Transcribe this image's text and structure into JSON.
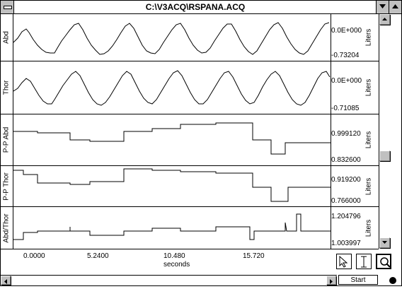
{
  "window": {
    "title": "C:\\V3ACQ\\RSPANA.ACQ"
  },
  "channels": [
    {
      "label": "Abd",
      "max": "0.0E+000",
      "min": "-0.73204",
      "unit": "Liters"
    },
    {
      "label": "Thor",
      "max": "0.0E+000",
      "min": "-0.71085",
      "unit": "Liters"
    },
    {
      "label": "P-P Abd",
      "max": "0.999120",
      "min": "0.832600",
      "unit": "Liters"
    },
    {
      "label": "P-P Thor",
      "max": "0.919200",
      "min": "0.766000",
      "unit": "Liters"
    },
    {
      "label": "Abd/Thor",
      "max": "1.204796",
      "min": "1.003997",
      "unit": "Liters"
    }
  ],
  "time_axis": {
    "ticks": [
      "0.0000",
      "5.2400",
      "10.480",
      "15.720"
    ],
    "label": "seconds"
  },
  "tools": [
    "pointer-tool",
    "ibeam-tool",
    "zoom-tool"
  ],
  "controls": {
    "start_label": "Start"
  },
  "colors": {
    "trace": "#000000",
    "chrome": "#c0c0c0"
  }
}
